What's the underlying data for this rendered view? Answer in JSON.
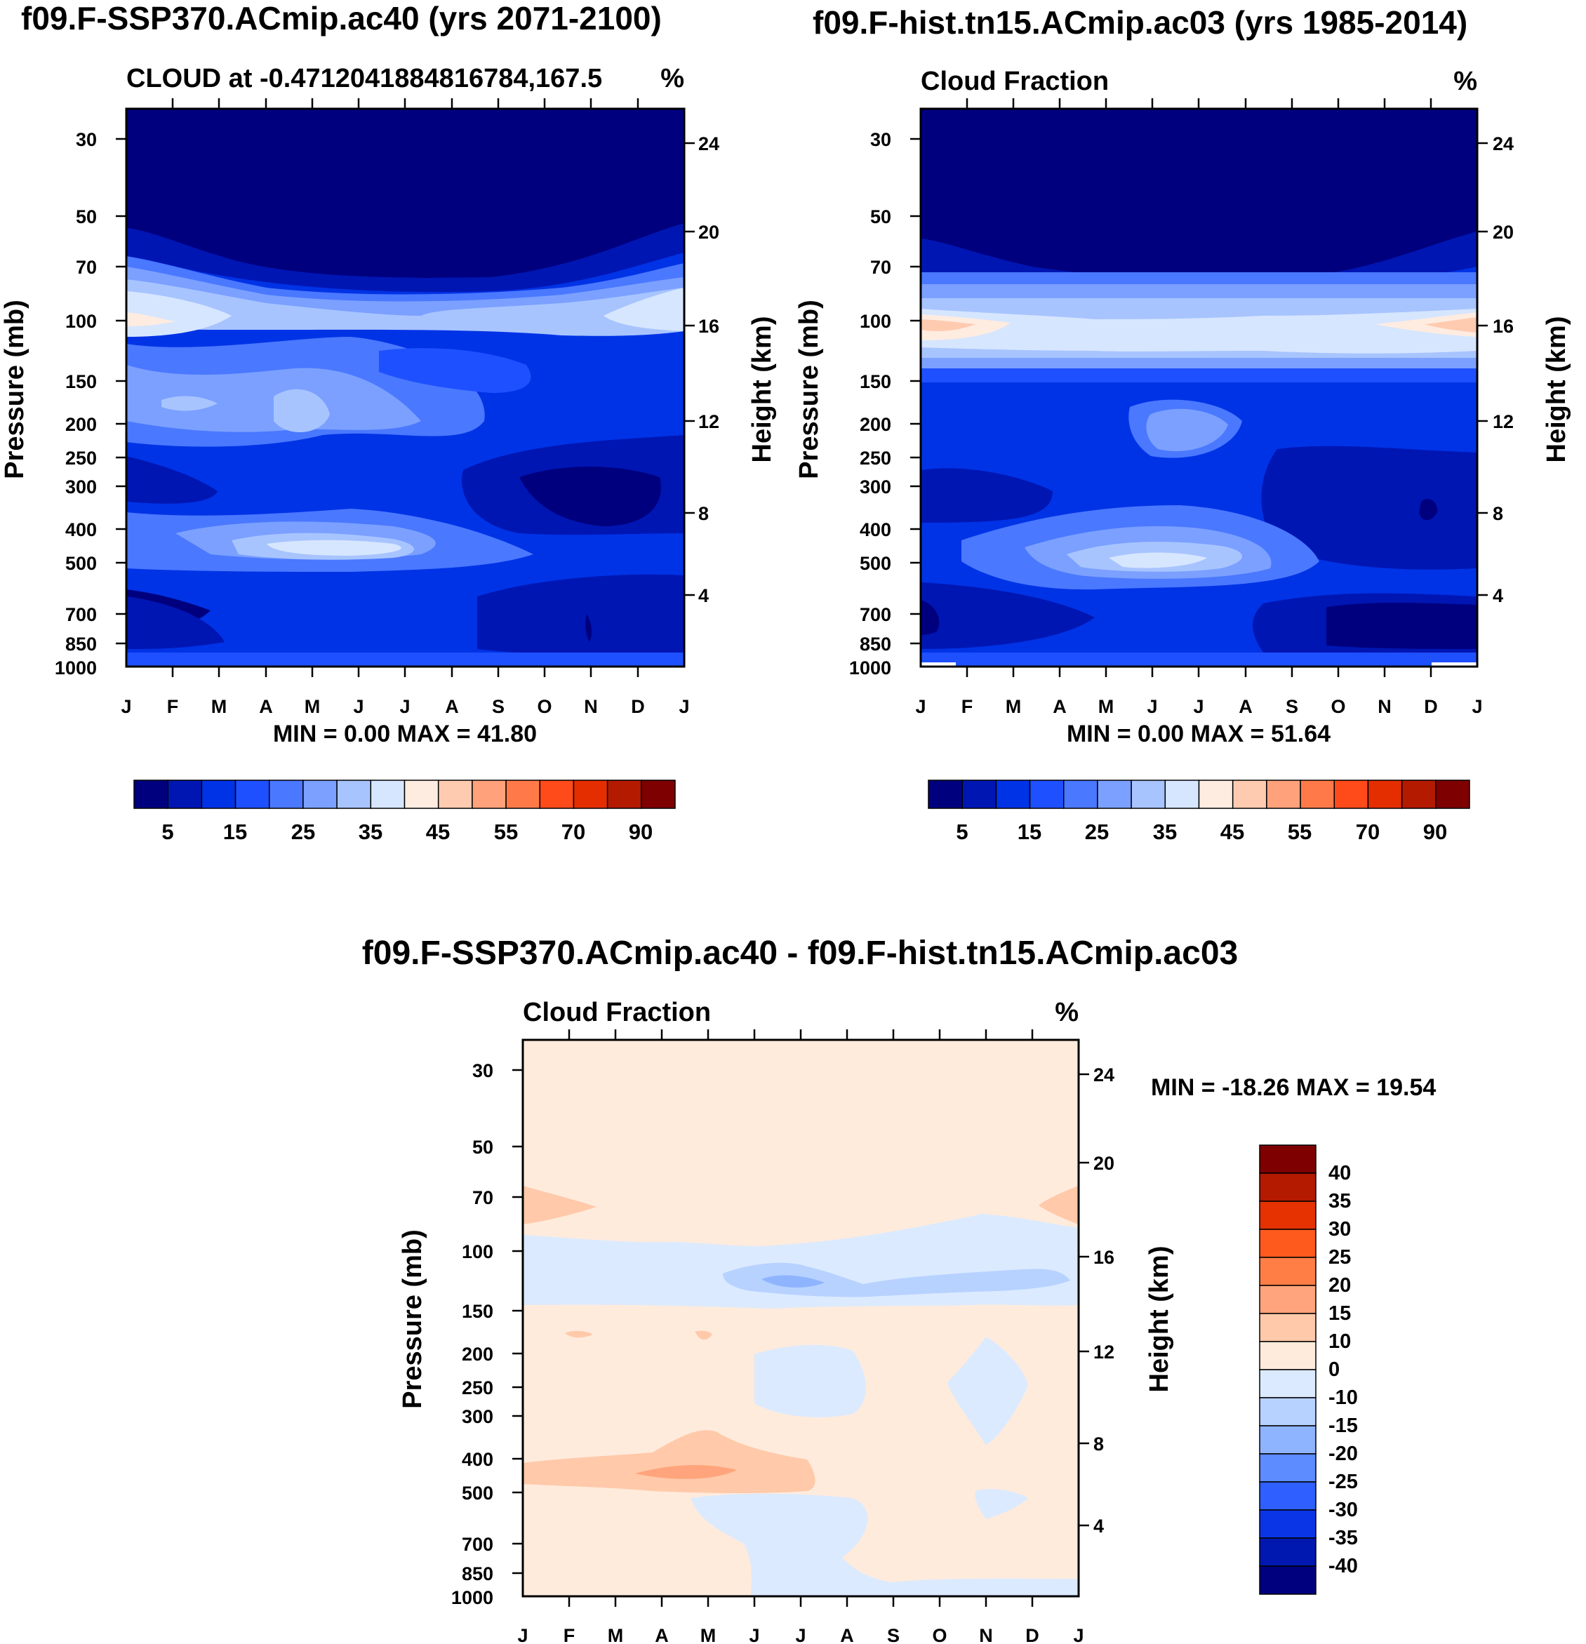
{
  "chart_data": [
    {
      "type": "contour",
      "id": "left",
      "title": "f09.F-SSP370.ACmip.ac40 (yrs 2071-2100)",
      "subtitle_left": "CLOUD at -0.4712041884816784,167.5",
      "subtitle_right": "%",
      "ylabel": "Pressure (mb)",
      "y2label": "Height (km)",
      "minmax": "MIN =   0.00 MAX =  41.80",
      "months": [
        "J",
        "F",
        "M",
        "A",
        "M",
        "J",
        "J",
        "A",
        "S",
        "O",
        "N",
        "D",
        "J"
      ],
      "pressure_ticks": [
        "30",
        "50",
        "70",
        "100",
        "150",
        "200",
        "250",
        "300",
        "400",
        "500",
        "700",
        "850",
        "1000"
      ],
      "height_ticks": [
        "24",
        "20",
        "16",
        "12",
        "8",
        "4"
      ],
      "colorbar_labels": [
        "5",
        "15",
        "25",
        "35",
        "45",
        "55",
        "70",
        "90"
      ],
      "palette": [
        "#00007f",
        "#0016b3",
        "#0033e6",
        "#1e50ff",
        "#4a78ff",
        "#7ba0ff",
        "#a8c4ff",
        "#d6e6ff",
        "#ffece0",
        "#ffcbb0",
        "#ffa27c",
        "#ff7a48",
        "#ff4a1a",
        "#e52e00",
        "#b31a00",
        "#7f0000"
      ]
    },
    {
      "type": "contour",
      "id": "right",
      "title": "f09.F-hist.tn15.ACmip.ac03 (yrs 1985-2014)",
      "subtitle_left": "Cloud Fraction",
      "subtitle_right": "%",
      "ylabel": "Pressure (mb)",
      "y2label": "Height (km)",
      "minmax": "MIN =   0.00 MAX =  51.64",
      "months": [
        "J",
        "F",
        "M",
        "A",
        "M",
        "J",
        "J",
        "A",
        "S",
        "O",
        "N",
        "D",
        "J"
      ],
      "pressure_ticks": [
        "30",
        "50",
        "70",
        "100",
        "150",
        "200",
        "250",
        "300",
        "400",
        "500",
        "700",
        "850",
        "1000"
      ],
      "height_ticks": [
        "24",
        "20",
        "16",
        "12",
        "8",
        "4"
      ],
      "colorbar_labels": [
        "5",
        "15",
        "25",
        "35",
        "45",
        "55",
        "70",
        "90"
      ]
    },
    {
      "type": "contour",
      "id": "diff",
      "title": "f09.F-SSP370.ACmip.ac40 - f09.F-hist.tn15.ACmip.ac03",
      "subtitle_left": "Cloud Fraction",
      "subtitle_right": "%",
      "ylabel": "Pressure (mb)",
      "y2label": "Height (km)",
      "minmax": "MIN = -18.26 MAX =  19.54",
      "months": [
        "J",
        "F",
        "M",
        "A",
        "M",
        "J",
        "J",
        "A",
        "S",
        "O",
        "N",
        "D",
        "J"
      ],
      "pressure_ticks": [
        "30",
        "50",
        "70",
        "100",
        "150",
        "200",
        "250",
        "300",
        "400",
        "500",
        "700",
        "850",
        "1000"
      ],
      "height_ticks": [
        "24",
        "20",
        "16",
        "12",
        "8",
        "4"
      ],
      "colorbar_labels": [
        "40",
        "35",
        "30",
        "25",
        "20",
        "15",
        "10",
        "0",
        "-10",
        "-15",
        "-20",
        "-25",
        "-30",
        "-35",
        "-40"
      ],
      "palette": [
        "#7f0000",
        "#b31a00",
        "#e53200",
        "#ff5a1e",
        "#ff7e46",
        "#ffa47c",
        "#ffc9aa",
        "#ffebdc",
        "#dbeaff",
        "#b7d2ff",
        "#8fb4ff",
        "#5c8cff",
        "#2f5fff",
        "#0a35e6",
        "#0018b0",
        "#00007f"
      ]
    }
  ]
}
